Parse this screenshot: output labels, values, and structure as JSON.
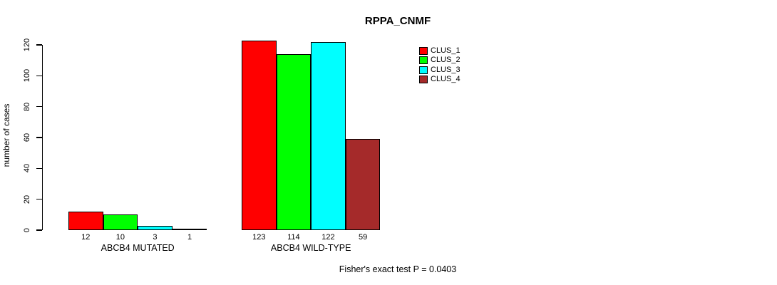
{
  "chart_data": {
    "type": "bar",
    "title": "RPPA_CNMF",
    "ylabel": "number of cases",
    "xlabel": "",
    "categories": [
      "ABCB4 MUTATED",
      "ABCB4 WILD-TYPE"
    ],
    "series": [
      {
        "name": "CLUS_1",
        "color": "#FF0000",
        "values": [
          12,
          123
        ]
      },
      {
        "name": "CLUS_2",
        "color": "#00FF00",
        "values": [
          10,
          114
        ]
      },
      {
        "name": "CLUS_3",
        "color": "#00FFFF",
        "values": [
          3,
          122
        ]
      },
      {
        "name": "CLUS_4",
        "color": "#A52A2A",
        "values": [
          1,
          59
        ]
      }
    ],
    "yticks": [
      0,
      20,
      40,
      60,
      80,
      100,
      120
    ],
    "ylim": [
      0,
      120
    ],
    "bar_value_labels_shown": true,
    "legend_position": "top-right",
    "grid": false,
    "annotation": "Fisher's exact test P = 0.0403"
  }
}
